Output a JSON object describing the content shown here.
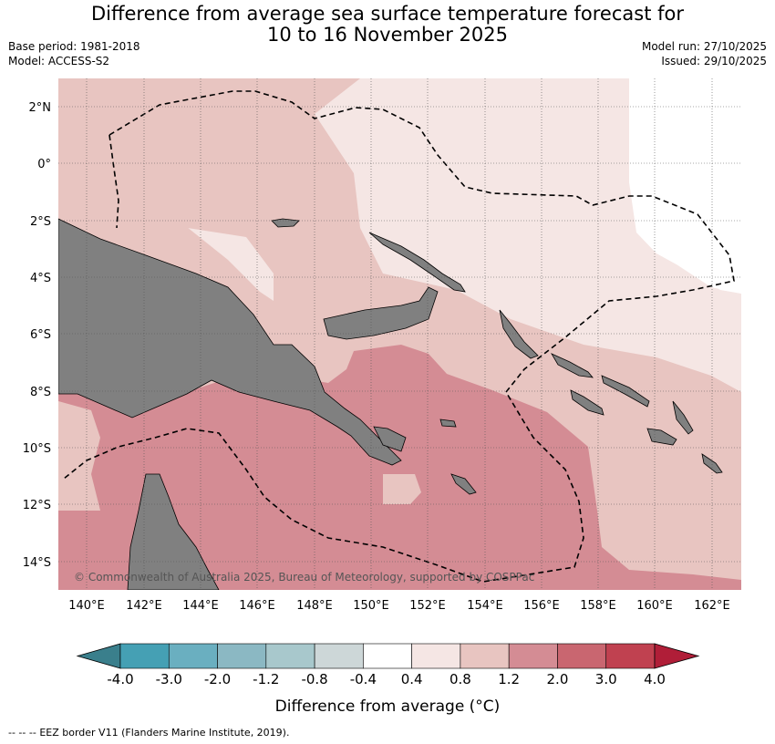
{
  "title": {
    "line1": "Difference from average sea surface temperature forecast for",
    "line2": "10 to 16 November 2025"
  },
  "meta": {
    "base_period": "Base period: 1981-2018",
    "model": "Model: ACCESS-S2",
    "model_run": "Model run: 27/10/2025",
    "issued": "Issued: 29/10/2025"
  },
  "map": {
    "lat_ticks": [
      "2°N",
      "0°",
      "2°S",
      "4°S",
      "6°S",
      "8°S",
      "10°S",
      "12°S",
      "14°S"
    ],
    "lon_ticks": [
      "140°E",
      "142°E",
      "144°E",
      "146°E",
      "148°E",
      "150°E",
      "152°E",
      "154°E",
      "156°E",
      "158°E",
      "160°E",
      "162°E"
    ],
    "copyright": "© Commonwealth of Australia 2025, Bureau of Meteorology, supported by COSPPac",
    "colors": {
      "land": "#808080",
      "anom_0_4_0_8": "#f5e6e4",
      "anom_0_8_1_2": "#e8c5c1",
      "anom_1_2_2_0": "#d48c94"
    }
  },
  "colorbar": {
    "tick_labels": [
      "-4.0",
      "-3.0",
      "-2.0",
      "-1.2",
      "-0.8",
      "-0.4",
      "0.4",
      "0.8",
      "1.2",
      "2.0",
      "3.0",
      "4.0"
    ],
    "label": "Difference from average (°C)",
    "colors": [
      "#3a7f8c",
      "#45a0b4",
      "#6aafc0",
      "#8bb8c3",
      "#a8c8cc",
      "#cdd7d8",
      "#ffffff",
      "#f5e6e4",
      "#e8c5c1",
      "#d48c94",
      "#c96670",
      "#c04150",
      "#b01e38"
    ]
  },
  "footnote": {
    "dash": "-- -- --",
    "text": "EEZ border V11 (Flanders Marine Institute, 2019)."
  }
}
